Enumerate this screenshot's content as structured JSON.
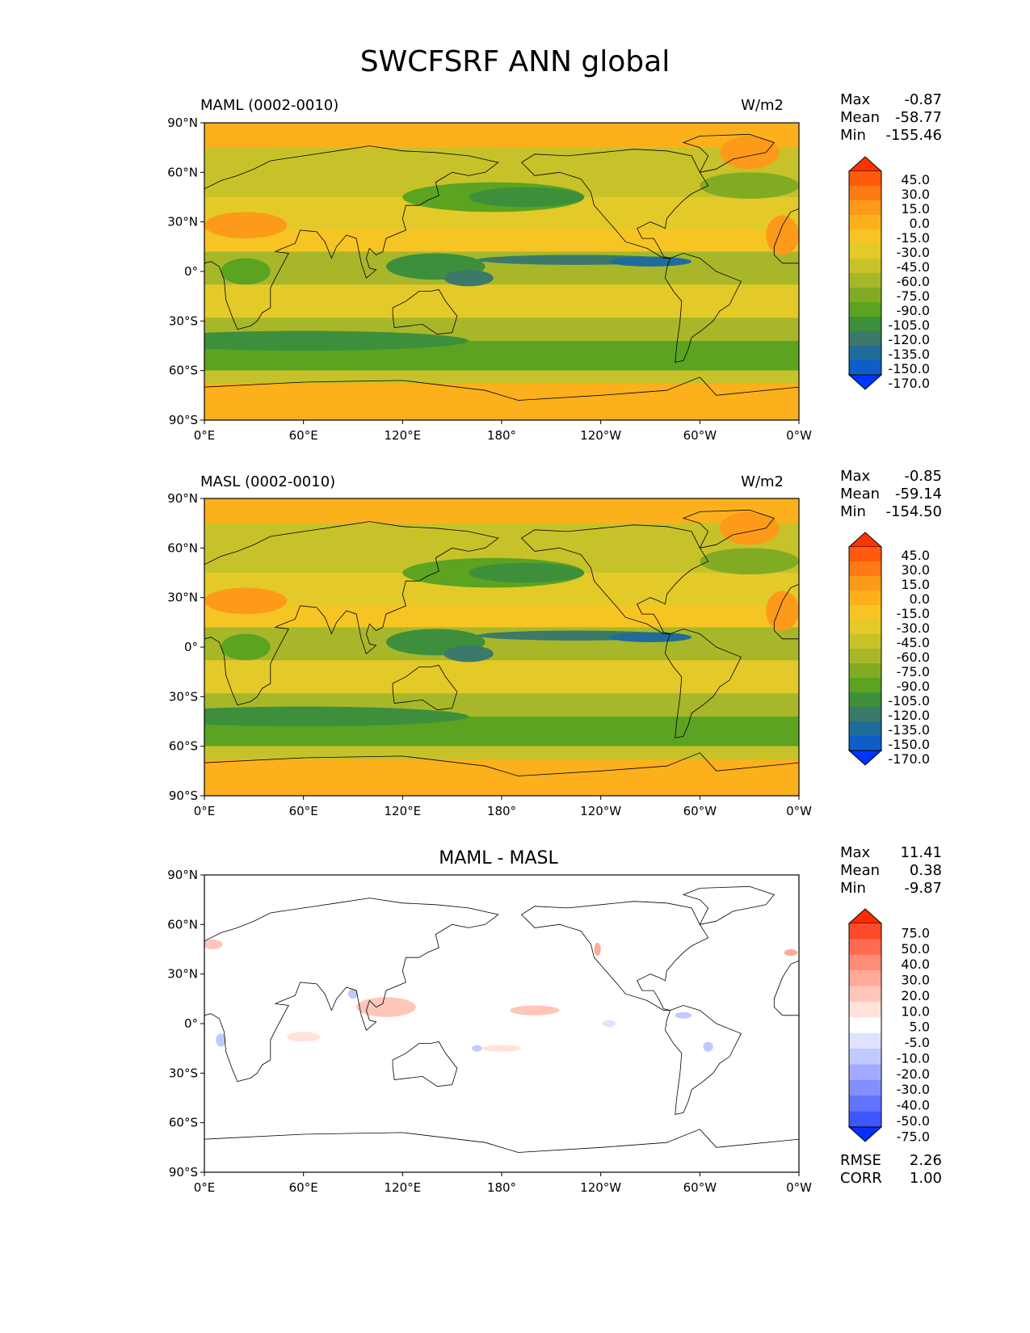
{
  "title": "SWCFSRF ANN global",
  "lon_ticks": [
    "0°E",
    "60°E",
    "120°E",
    "180°",
    "120°W",
    "60°W",
    "0°W"
  ],
  "lat_ticks": [
    "90°N",
    "60°N",
    "30°N",
    "0°",
    "30°S",
    "60°S",
    "90°S"
  ],
  "panels": [
    {
      "title_left": "MAML (0002-0010)",
      "title_right": "W/m2",
      "title_center": "",
      "stats": {
        "max_label": "Max",
        "max": "-0.87",
        "mean_label": "Mean",
        "mean": "-58.77",
        "min_label": "Min",
        "min": "-155.46"
      },
      "colorbar": {
        "levels": [
          "45.0",
          "30.0",
          "15.0",
          "0.0",
          "-15.0",
          "-30.0",
          "-45.0",
          "-60.0",
          "-75.0",
          "-90.0",
          "-105.0",
          "-120.0",
          "-135.0",
          "-150.0",
          "-170.0"
        ],
        "colors": [
          "#ff3300",
          "#ff5a0d",
          "#ff7a15",
          "#fd9a1a",
          "#fbb01c",
          "#f6c524",
          "#e3ca28",
          "#c7c22a",
          "#a8b72a",
          "#82ab24",
          "#5ba321",
          "#3d8f3c",
          "#3b7a6a",
          "#1f6b9a",
          "#0d5ec9",
          "#0034ff"
        ]
      }
    },
    {
      "title_left": "MASL (0002-0010)",
      "title_right": "W/m2",
      "title_center": "",
      "stats": {
        "max_label": "Max",
        "max": "-0.85",
        "mean_label": "Mean",
        "mean": "-59.14",
        "min_label": "Min",
        "min": "-154.50"
      },
      "colorbar": {
        "levels": [
          "45.0",
          "30.0",
          "15.0",
          "0.0",
          "-15.0",
          "-30.0",
          "-45.0",
          "-60.0",
          "-75.0",
          "-90.0",
          "-105.0",
          "-120.0",
          "-135.0",
          "-150.0",
          "-170.0"
        ],
        "colors": [
          "#ff3300",
          "#ff5a0d",
          "#ff7a15",
          "#fd9a1a",
          "#fbb01c",
          "#f6c524",
          "#e3ca28",
          "#c7c22a",
          "#a8b72a",
          "#82ab24",
          "#5ba321",
          "#3d8f3c",
          "#3b7a6a",
          "#1f6b9a",
          "#0d5ec9",
          "#0034ff"
        ]
      }
    },
    {
      "title_left": "",
      "title_right": "",
      "title_center": "MAML - MASL",
      "stats": {
        "max_label": "Max",
        "max": "11.41",
        "mean_label": "Mean",
        "mean": "0.38",
        "min_label": "Min",
        "min": "-9.87"
      },
      "extra_stats": {
        "rmse_label": "RMSE",
        "rmse": "2.26",
        "corr_label": "CORR",
        "corr": "1.00"
      },
      "colorbar": {
        "levels": [
          "75.0",
          "50.0",
          "40.0",
          "30.0",
          "20.0",
          "10.0",
          "5.0",
          "-5.0",
          "-10.0",
          "-20.0",
          "-30.0",
          "-40.0",
          "-50.0",
          "-75.0"
        ],
        "colors": [
          "#ff2a00",
          "#ff4a2a",
          "#ff6b50",
          "#ff8c78",
          "#ffaa99",
          "#ffc6b9",
          "#ffe3db",
          "#ffffff",
          "#dfe3ff",
          "#c2c9ff",
          "#a2abff",
          "#8290ff",
          "#6273ff",
          "#4156ff",
          "#0a2dff"
        ]
      }
    }
  ],
  "chart_data": {
    "type": "heatmap",
    "title": "SWCFSRF ANN global",
    "xlabel": "",
    "ylabel": "",
    "x_ticks": [
      "0°E",
      "60°E",
      "120°E",
      "180°",
      "120°W",
      "60°W",
      "0°W"
    ],
    "y_ticks": [
      "90°N",
      "60°N",
      "30°N",
      "0°",
      "30°S",
      "60°S",
      "90°S"
    ],
    "xlim": [
      0,
      360
    ],
    "ylim": [
      -90,
      90
    ],
    "series": [
      {
        "name": "MAML (0002-0010)",
        "units": "W/m2",
        "max": -0.87,
        "mean": -58.77,
        "min": -155.46
      },
      {
        "name": "MASL (0002-0010)",
        "units": "W/m2",
        "max": -0.85,
        "mean": -59.14,
        "min": -154.5
      },
      {
        "name": "MAML - MASL",
        "max": 11.41,
        "mean": 0.38,
        "min": -9.87,
        "rmse": 2.26,
        "corr": 1.0
      }
    ]
  }
}
